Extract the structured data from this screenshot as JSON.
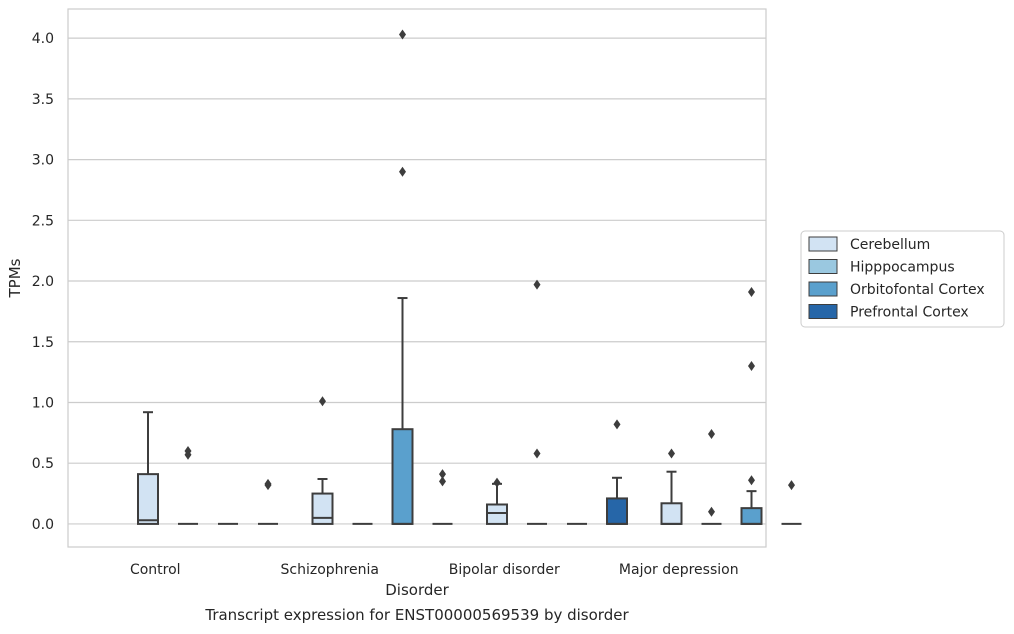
{
  "caption": "Transcript expression for ENST00000569539 by disorder",
  "chart_data": {
    "type": "box",
    "xlabel": "Disorder",
    "ylabel": "TPMs",
    "ylim": [
      -0.19,
      4.24
    ],
    "yticks": [
      0.0,
      0.5,
      1.0,
      1.5,
      2.0,
      2.5,
      3.0,
      3.5,
      4.0
    ],
    "ytick_labels": [
      "0.0",
      "0.5",
      "1.0",
      "1.5",
      "2.0",
      "2.5",
      "3.0",
      "3.5",
      "4.0"
    ],
    "grid": "horizontal",
    "legend_position": "right",
    "categories": [
      "Control",
      "Schizophrenia",
      "Bipolar disorder",
      "Major depression"
    ],
    "series": [
      {
        "name": "Cerebellum",
        "color": "#d2e3f3",
        "boxes": [
          {
            "q1": 0.0,
            "median": 0.03,
            "q3": 0.41,
            "whisker_low": 0.0,
            "whisker_high": 0.92,
            "outliers": []
          },
          {
            "q1": 0.0,
            "median": 0.05,
            "q3": 0.25,
            "whisker_low": 0.0,
            "whisker_high": 0.37,
            "outliers": [
              1.01
            ]
          },
          {
            "q1": 0.0,
            "median": 0.09,
            "q3": 0.16,
            "whisker_low": 0.0,
            "whisker_high": 0.33,
            "outliers": [
              0.34
            ]
          },
          {
            "q1": 0.0,
            "median": 0.0,
            "q3": 0.17,
            "whisker_low": 0.0,
            "whisker_high": 0.43,
            "outliers": [
              0.58
            ]
          }
        ]
      },
      {
        "name": "Hipppocampus",
        "color": "#9ac8e0",
        "boxes": [
          {
            "q1": 0.0,
            "median": 0.0,
            "q3": 0.0,
            "whisker_low": 0.0,
            "whisker_high": 0.0,
            "outliers": [
              0.6,
              0.57
            ]
          },
          {
            "q1": 0.0,
            "median": 0.0,
            "q3": 0.0,
            "whisker_low": 0.0,
            "whisker_high": 0.0,
            "outliers": []
          },
          {
            "q1": 0.0,
            "median": 0.0,
            "q3": 0.0,
            "whisker_low": 0.0,
            "whisker_high": 0.0,
            "outliers": [
              1.97,
              0.58
            ]
          },
          {
            "q1": 0.0,
            "median": 0.0,
            "q3": 0.0,
            "whisker_low": 0.0,
            "whisker_high": 0.0,
            "outliers": [
              0.74,
              0.1
            ]
          }
        ]
      },
      {
        "name": "Orbitofontal Cortex",
        "color": "#5aa0cd",
        "boxes": [
          {
            "q1": 0.0,
            "median": 0.0,
            "q3": 0.0,
            "whisker_low": 0.0,
            "whisker_high": 0.0,
            "outliers": []
          },
          {
            "q1": 0.0,
            "median": 0.0,
            "q3": 0.78,
            "whisker_low": 0.0,
            "whisker_high": 1.86,
            "outliers": [
              4.03,
              2.9
            ]
          },
          {
            "q1": 0.0,
            "median": 0.0,
            "q3": 0.0,
            "whisker_low": 0.0,
            "whisker_high": 0.0,
            "outliers": []
          },
          {
            "q1": 0.0,
            "median": 0.0,
            "q3": 0.13,
            "whisker_low": 0.0,
            "whisker_high": 0.27,
            "outliers": [
              1.91,
              1.3,
              0.36
            ]
          }
        ]
      },
      {
        "name": "Prefrontal Cortex",
        "color": "#2666a8",
        "boxes": [
          {
            "q1": 0.0,
            "median": 0.0,
            "q3": 0.0,
            "whisker_low": 0.0,
            "whisker_high": 0.0,
            "outliers": [
              0.33,
              0.32
            ]
          },
          {
            "q1": 0.0,
            "median": 0.0,
            "q3": 0.0,
            "whisker_low": 0.0,
            "whisker_high": 0.0,
            "outliers": [
              0.41,
              0.35
            ]
          },
          {
            "q1": 0.0,
            "median": 0.0,
            "q3": 0.21,
            "whisker_low": 0.0,
            "whisker_high": 0.38,
            "outliers": [
              0.82
            ]
          },
          {
            "q1": 0.0,
            "median": 0.0,
            "q3": 0.0,
            "whisker_low": 0.0,
            "whisker_high": 0.0,
            "outliers": [
              0.32
            ]
          }
        ]
      }
    ]
  }
}
